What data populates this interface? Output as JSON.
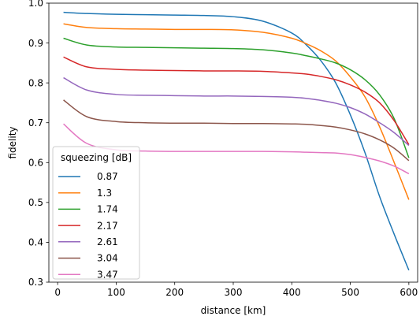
{
  "chart_data": {
    "type": "line",
    "xlabel": "distance [km]",
    "ylabel": "fidelity",
    "xlim": [
      -15,
      615
    ],
    "ylim": [
      0.3,
      1.0
    ],
    "xticks": [
      0,
      100,
      200,
      300,
      400,
      500,
      600
    ],
    "yticks": [
      0.3,
      0.4,
      0.5,
      0.6,
      0.7,
      0.8,
      0.9,
      1.0
    ],
    "tick_labels_x": [
      "0",
      "100",
      "200",
      "300",
      "400",
      "500",
      "600"
    ],
    "tick_labels_y": [
      "0.3",
      "0.4",
      "0.5",
      "0.6",
      "0.7",
      "0.8",
      "0.9",
      "1.0"
    ],
    "grid": false,
    "legend": {
      "title": "squeezing [dB]",
      "placement": "lower-left"
    },
    "x": [
      10,
      50,
      100,
      150,
      200,
      250,
      300,
      350,
      400,
      425,
      450,
      475,
      500,
      525,
      550,
      575,
      600
    ],
    "series": [
      {
        "name": "0.87",
        "color": "#1f77b4",
        "values": [
          0.977,
          0.974,
          0.972,
          0.971,
          0.97,
          0.969,
          0.966,
          0.955,
          0.925,
          0.895,
          0.855,
          0.8,
          0.72,
          0.625,
          0.515,
          0.42,
          0.33
        ]
      },
      {
        "name": "1.3",
        "color": "#ff7f0e",
        "values": [
          0.948,
          0.939,
          0.936,
          0.935,
          0.934,
          0.934,
          0.933,
          0.927,
          0.912,
          0.898,
          0.88,
          0.855,
          0.815,
          0.765,
          0.69,
          0.6,
          0.507
        ]
      },
      {
        "name": "1.74",
        "color": "#2ca02c",
        "values": [
          0.912,
          0.895,
          0.89,
          0.889,
          0.888,
          0.887,
          0.886,
          0.883,
          0.875,
          0.868,
          0.86,
          0.85,
          0.833,
          0.808,
          0.77,
          0.71,
          0.612
        ]
      },
      {
        "name": "2.17",
        "color": "#d62728",
        "values": [
          0.865,
          0.84,
          0.834,
          0.832,
          0.831,
          0.83,
          0.83,
          0.829,
          0.825,
          0.822,
          0.816,
          0.808,
          0.795,
          0.777,
          0.75,
          0.705,
          0.645
        ]
      },
      {
        "name": "2.61",
        "color": "#9467bd",
        "values": [
          0.813,
          0.782,
          0.771,
          0.769,
          0.768,
          0.767,
          0.767,
          0.766,
          0.764,
          0.761,
          0.756,
          0.749,
          0.738,
          0.722,
          0.7,
          0.675,
          0.643
        ]
      },
      {
        "name": "3.04",
        "color": "#8c564b",
        "values": [
          0.757,
          0.715,
          0.703,
          0.7,
          0.699,
          0.699,
          0.698,
          0.698,
          0.697,
          0.696,
          0.693,
          0.689,
          0.682,
          0.672,
          0.657,
          0.636,
          0.605
        ]
      },
      {
        "name": "3.47",
        "color": "#e377c2",
        "values": [
          0.697,
          0.648,
          0.632,
          0.629,
          0.628,
          0.628,
          0.628,
          0.628,
          0.627,
          0.626,
          0.625,
          0.624,
          0.62,
          0.613,
          0.604,
          0.591,
          0.572
        ]
      }
    ]
  }
}
